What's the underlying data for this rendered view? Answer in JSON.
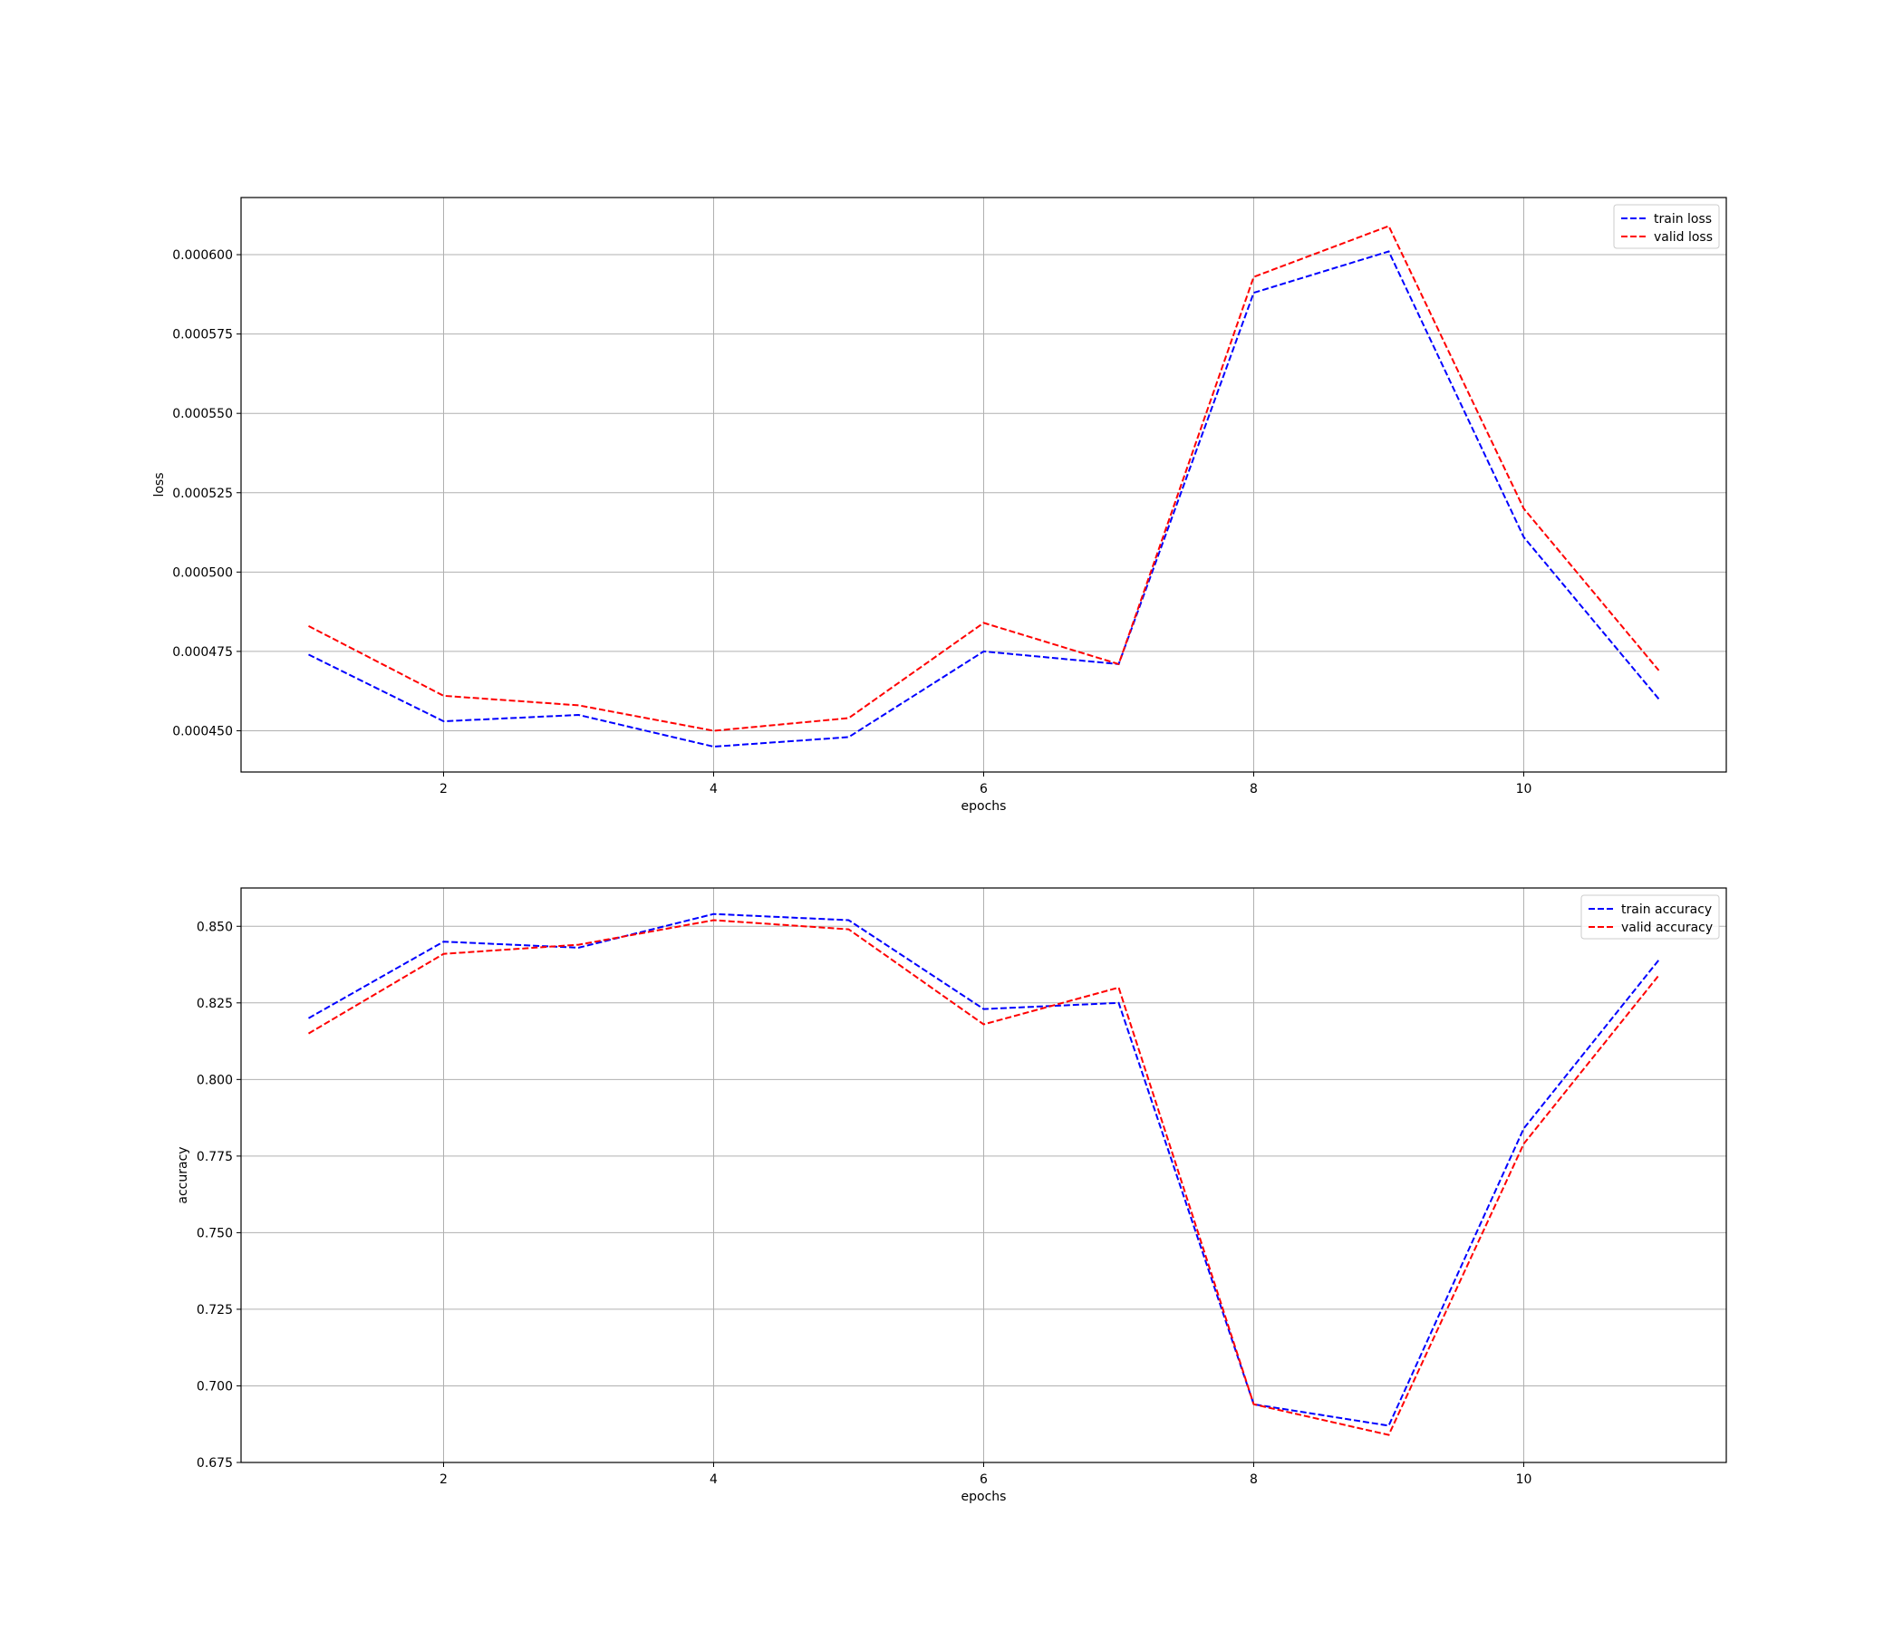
{
  "chart_data": [
    {
      "type": "line",
      "xlabel": "epochs",
      "ylabel": "loss",
      "xlim": [
        0.5,
        11.5
      ],
      "ylim": [
        0.000437,
        0.000618
      ],
      "xticks": [
        2,
        4,
        6,
        8,
        10
      ],
      "yticks": [
        0.00045,
        0.000475,
        0.0005,
        0.000525,
        0.00055,
        0.000575,
        0.0006
      ],
      "ytick_labels": [
        "0.000450",
        "0.000475",
        "0.000500",
        "0.000525",
        "0.000550",
        "0.000575",
        "0.000600"
      ],
      "grid": true,
      "legend_position": "top-right",
      "x": [
        1,
        2,
        3,
        4,
        5,
        6,
        7,
        8,
        9,
        10,
        11
      ],
      "series": [
        {
          "name": "train loss",
          "color": "#0000ff",
          "values": [
            0.000474,
            0.000453,
            0.000455,
            0.000445,
            0.000448,
            0.000475,
            0.000471,
            0.000588,
            0.000601,
            0.000511,
            0.00046
          ]
        },
        {
          "name": "valid loss",
          "color": "#ff0000",
          "values": [
            0.000483,
            0.000461,
            0.000458,
            0.00045,
            0.000454,
            0.000484,
            0.000471,
            0.000593,
            0.000609,
            0.00052,
            0.000469
          ]
        }
      ]
    },
    {
      "type": "line",
      "xlabel": "epochs",
      "ylabel": "accuracy",
      "xlim": [
        0.5,
        11.5
      ],
      "ylim": [
        0.675,
        0.8625
      ],
      "xticks": [
        2,
        4,
        6,
        8,
        10
      ],
      "yticks": [
        0.675,
        0.7,
        0.725,
        0.75,
        0.775,
        0.8,
        0.825,
        0.85
      ],
      "ytick_labels": [
        "0.675",
        "0.700",
        "0.725",
        "0.750",
        "0.775",
        "0.800",
        "0.825",
        "0.850"
      ],
      "grid": true,
      "legend_position": "top-right",
      "x": [
        1,
        2,
        3,
        4,
        5,
        6,
        7,
        8,
        9,
        10,
        11
      ],
      "series": [
        {
          "name": "train accuracy",
          "color": "#0000ff",
          "values": [
            0.82,
            0.845,
            0.843,
            0.854,
            0.852,
            0.823,
            0.825,
            0.694,
            0.687,
            0.784,
            0.839
          ]
        },
        {
          "name": "valid accuracy",
          "color": "#ff0000",
          "values": [
            0.815,
            0.841,
            0.844,
            0.852,
            0.849,
            0.818,
            0.83,
            0.694,
            0.684,
            0.779,
            0.834
          ]
        }
      ]
    }
  ]
}
